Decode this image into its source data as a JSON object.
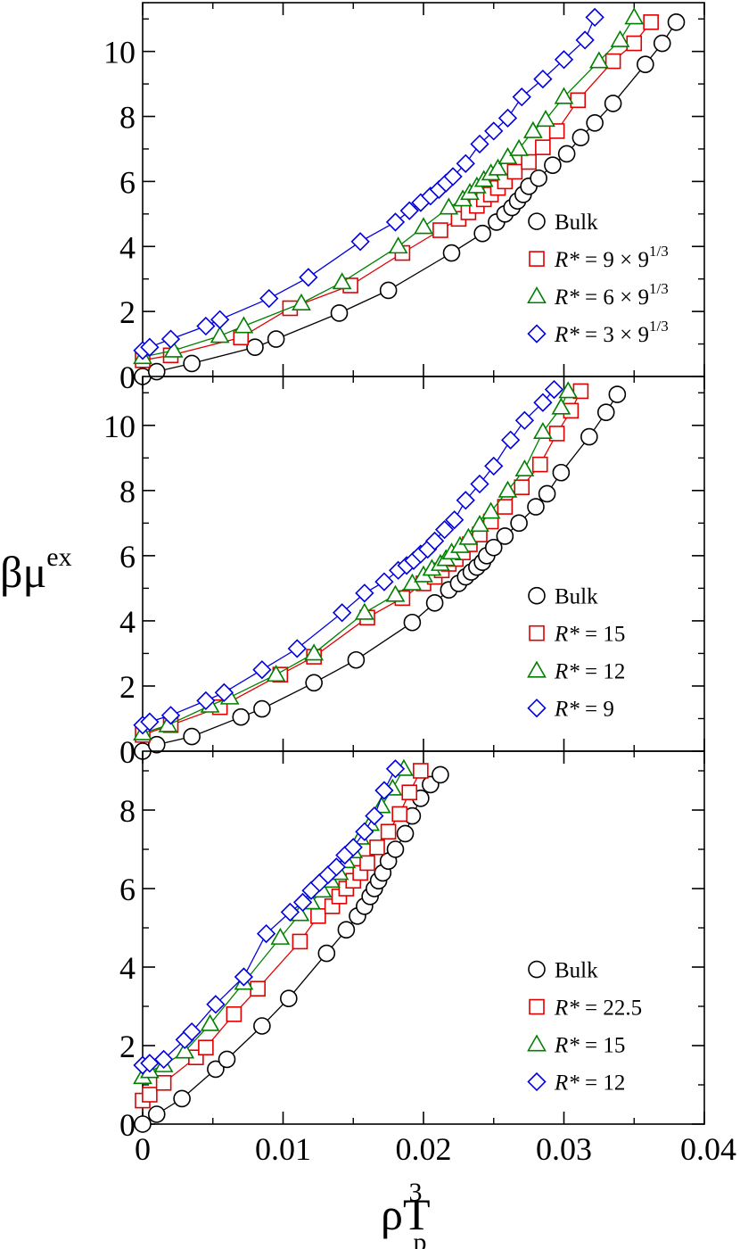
{
  "chart_data": {
    "type": "scatter",
    "xlabel": "ρT",
    "xlabel_sup": "3",
    "xlabel_sub": "p",
    "ylabel": "βμ",
    "ylabel_sup": "ex",
    "xlim": [
      0,
      0.04
    ],
    "x_ticks": [
      "0",
      "0.01",
      "0.02",
      "0.03",
      "0.04"
    ],
    "x_tick_values": [
      0,
      0.01,
      0.02,
      0.03,
      0.04
    ],
    "colors": {
      "Bulk": "#000000",
      "large": "#e00000",
      "mid": "#008000",
      "small": "#0000e0"
    },
    "panels": [
      {
        "name": "top",
        "ylim": [
          0,
          11.5
        ],
        "y_ticks": [
          "0",
          "2",
          "4",
          "6",
          "8",
          "10"
        ],
        "y_tick_values": [
          0,
          2,
          4,
          6,
          8,
          10
        ],
        "legend": [
          {
            "marker": "circle",
            "color": "#000000",
            "label": "Bulk",
            "rhs": ""
          },
          {
            "marker": "square",
            "color": "#e00000",
            "label": "R*",
            "rhs": " = 9 × 9",
            "sup": "1/3"
          },
          {
            "marker": "triangle",
            "color": "#008000",
            "label": "R*",
            "rhs": " = 6 × 9",
            "sup": "1/3"
          },
          {
            "marker": "diamond",
            "color": "#0000e0",
            "label": "R*",
            "rhs": " = 3 × 9",
            "sup": "1/3"
          }
        ],
        "series": [
          {
            "name": "Bulk",
            "marker": "circle",
            "color": "#000000",
            "x": [
              0,
              0.001,
              0.0035,
              0.008,
              0.0095,
              0.014,
              0.0175,
              0.022,
              0.0242,
              0.0252,
              0.0258,
              0.0263,
              0.0267,
              0.0271,
              0.0275,
              0.0282,
              0.0292,
              0.0302,
              0.0312,
              0.0322,
              0.0335,
              0.0358,
              0.037,
              0.038
            ],
            "y": [
              0,
              0.15,
              0.4,
              0.9,
              1.15,
              1.95,
              2.65,
              3.8,
              4.4,
              4.75,
              5.0,
              5.2,
              5.4,
              5.6,
              5.85,
              6.1,
              6.5,
              6.85,
              7.35,
              7.8,
              8.4,
              9.6,
              10.25,
              10.9
            ]
          },
          {
            "name": "R* = 9 × 9^1/3",
            "marker": "square",
            "color": "#e00000",
            "x": [
              0,
              0.002,
              0.007,
              0.0105,
              0.0148,
              0.0185,
              0.0212,
              0.0225,
              0.0232,
              0.0238,
              0.0243,
              0.0248,
              0.0253,
              0.0258,
              0.0265,
              0.0275,
              0.0285,
              0.0295,
              0.031,
              0.0335,
              0.035,
              0.0362
            ],
            "y": [
              0.5,
              0.65,
              1.2,
              2.1,
              2.8,
              3.8,
              4.5,
              4.85,
              5.05,
              5.25,
              5.45,
              5.6,
              5.8,
              6.0,
              6.3,
              6.6,
              7.05,
              7.55,
              8.5,
              9.7,
              10.25,
              10.9
            ]
          },
          {
            "name": "R* = 6 × 9^1/3",
            "marker": "triangle",
            "color": "#008000",
            "x": [
              0,
              0.0022,
              0.0055,
              0.0072,
              0.0113,
              0.0142,
              0.0182,
              0.02,
              0.0218,
              0.0228,
              0.0233,
              0.0238,
              0.0243,
              0.0248,
              0.0253,
              0.026,
              0.0268,
              0.0278,
              0.0287,
              0.03,
              0.0325,
              0.034,
              0.035
            ],
            "y": [
              0.6,
              0.8,
              1.25,
              1.55,
              2.25,
              2.9,
              4.0,
              4.6,
              5.2,
              5.45,
              5.65,
              5.85,
              6.05,
              6.25,
              6.4,
              6.75,
              7.0,
              7.55,
              7.9,
              8.6,
              9.7,
              10.35,
              11.05
            ]
          },
          {
            "name": "R* = 3 × 9^1/3",
            "marker": "diamond",
            "color": "#0000e0",
            "x": [
              0,
              0.0005,
              0.002,
              0.0045,
              0.0055,
              0.009,
              0.0118,
              0.0155,
              0.018,
              0.019,
              0.0198,
              0.0205,
              0.0211,
              0.0216,
              0.0221,
              0.023,
              0.024,
              0.025,
              0.026,
              0.027,
              0.0285,
              0.03,
              0.0315,
              0.0322
            ],
            "y": [
              0.8,
              0.9,
              1.15,
              1.55,
              1.75,
              2.4,
              3.05,
              4.15,
              4.75,
              5.1,
              5.35,
              5.55,
              5.75,
              5.95,
              6.15,
              6.55,
              7.15,
              7.55,
              7.95,
              8.6,
              9.15,
              9.75,
              10.35,
              11.05
            ]
          }
        ]
      },
      {
        "name": "middle",
        "ylim": [
          0,
          11.5
        ],
        "y_ticks": [
          "0",
          "2",
          "4",
          "6",
          "8",
          "10"
        ],
        "y_tick_values": [
          0,
          2,
          4,
          6,
          8,
          10
        ],
        "legend": [
          {
            "marker": "circle",
            "color": "#000000",
            "label": "Bulk",
            "rhs": ""
          },
          {
            "marker": "square",
            "color": "#e00000",
            "label": "R*",
            "rhs": " = 15"
          },
          {
            "marker": "triangle",
            "color": "#008000",
            "label": "R*",
            "rhs": " = 12"
          },
          {
            "marker": "diamond",
            "color": "#0000e0",
            "label": "R*",
            "rhs": " = 9"
          }
        ],
        "series": [
          {
            "name": "Bulk",
            "marker": "circle",
            "color": "#000000",
            "x": [
              0,
              0.001,
              0.0035,
              0.007,
              0.0085,
              0.0122,
              0.0152,
              0.0192,
              0.0208,
              0.0218,
              0.0225,
              0.023,
              0.0234,
              0.0238,
              0.0242,
              0.0245,
              0.025,
              0.0258,
              0.0268,
              0.028,
              0.0288,
              0.0298,
              0.0318,
              0.033,
              0.0338
            ],
            "y": [
              0,
              0.2,
              0.45,
              1.05,
              1.3,
              2.1,
              2.8,
              3.95,
              4.55,
              4.95,
              5.15,
              5.35,
              5.5,
              5.65,
              5.8,
              6.0,
              6.25,
              6.6,
              7.0,
              7.5,
              7.9,
              8.55,
              9.65,
              10.4,
              10.95
            ]
          },
          {
            "name": "R* = 15",
            "marker": "square",
            "color": "#e00000",
            "x": [
              0,
              0.002,
              0.0055,
              0.0098,
              0.0122,
              0.016,
              0.0185,
              0.02,
              0.0208,
              0.0213,
              0.0218,
              0.0223,
              0.0228,
              0.0233,
              0.024,
              0.0248,
              0.0258,
              0.027,
              0.0283,
              0.0295,
              0.0305,
              0.0312
            ],
            "y": [
              0.5,
              0.8,
              1.35,
              2.35,
              2.9,
              4.1,
              4.7,
              5.15,
              5.35,
              5.55,
              5.75,
              5.9,
              6.1,
              6.35,
              6.65,
              7.05,
              7.5,
              8.1,
              8.8,
              9.75,
              10.45,
              11.05
            ]
          },
          {
            "name": "R* = 12",
            "marker": "triangle",
            "color": "#008000",
            "x": [
              0,
              0.0018,
              0.0048,
              0.0062,
              0.0095,
              0.0122,
              0.0158,
              0.018,
              0.0192,
              0.02,
              0.0206,
              0.0212,
              0.0216,
              0.022,
              0.0226,
              0.0232,
              0.024,
              0.0248,
              0.026,
              0.0272,
              0.0285,
              0.0298,
              0.0303
            ],
            "y": [
              0.55,
              0.8,
              1.4,
              1.65,
              2.35,
              3.0,
              4.25,
              4.8,
              5.15,
              5.4,
              5.6,
              5.75,
              5.9,
              6.1,
              6.3,
              6.55,
              6.95,
              7.35,
              8.0,
              8.65,
              9.8,
              10.55,
              11.05
            ]
          },
          {
            "name": "R* = 9",
            "marker": "diamond",
            "color": "#0000e0",
            "x": [
              0,
              0.0005,
              0.002,
              0.0045,
              0.0058,
              0.0085,
              0.011,
              0.0142,
              0.0158,
              0.0172,
              0.0182,
              0.0188,
              0.0193,
              0.0198,
              0.0203,
              0.0208,
              0.0215,
              0.0222,
              0.023,
              0.024,
              0.025,
              0.0262,
              0.0272,
              0.0285,
              0.0293
            ],
            "y": [
              0.8,
              0.9,
              1.1,
              1.55,
              1.8,
              2.5,
              3.15,
              4.25,
              4.85,
              5.2,
              5.55,
              5.7,
              5.85,
              6.05,
              6.2,
              6.45,
              6.8,
              7.1,
              7.7,
              8.2,
              8.75,
              9.55,
              10.15,
              10.7,
              11.1
            ]
          }
        ]
      },
      {
        "name": "bottom",
        "ylim": [
          0,
          9.5
        ],
        "y_ticks": [
          "0",
          "2",
          "4",
          "6",
          "8"
        ],
        "y_tick_values": [
          0,
          2,
          4,
          6,
          8
        ],
        "legend": [
          {
            "marker": "circle",
            "color": "#000000",
            "label": "Bulk",
            "rhs": ""
          },
          {
            "marker": "square",
            "color": "#e00000",
            "label": "R*",
            "rhs": " = 22.5"
          },
          {
            "marker": "triangle",
            "color": "#008000",
            "label": "R*",
            "rhs": " = 15"
          },
          {
            "marker": "diamond",
            "color": "#0000e0",
            "label": "R*",
            "rhs": " = 12"
          }
        ],
        "series": [
          {
            "name": "Bulk",
            "marker": "circle",
            "color": "#000000",
            "x": [
              0,
              0.001,
              0.0028,
              0.0052,
              0.006,
              0.0085,
              0.0104,
              0.0131,
              0.0145,
              0.0153,
              0.0158,
              0.0162,
              0.0165,
              0.0168,
              0.0171,
              0.0175,
              0.018,
              0.0187,
              0.0192,
              0.0198,
              0.0205,
              0.0212
            ],
            "y": [
              0,
              0.25,
              0.65,
              1.4,
              1.65,
              2.5,
              3.2,
              4.35,
              4.95,
              5.3,
              5.55,
              5.8,
              6.0,
              6.2,
              6.4,
              6.7,
              7.0,
              7.4,
              7.85,
              8.3,
              8.65,
              8.9
            ]
          },
          {
            "name": "R* = 22.5",
            "marker": "square",
            "color": "#e00000",
            "x": [
              0,
              0.0005,
              0.0015,
              0.0038,
              0.0045,
              0.0065,
              0.0082,
              0.0112,
              0.0125,
              0.0135,
              0.014,
              0.0145,
              0.015,
              0.0155,
              0.016,
              0.0167,
              0.0175,
              0.0183,
              0.019,
              0.0198
            ],
            "y": [
              0.6,
              0.75,
              1.05,
              1.7,
              1.95,
              2.8,
              3.45,
              4.65,
              5.3,
              5.55,
              5.8,
              6.0,
              6.2,
              6.4,
              6.65,
              7.05,
              7.45,
              7.9,
              8.45,
              9.0
            ]
          },
          {
            "name": "R* = 15",
            "marker": "triangle",
            "color": "#008000",
            "x": [
              0,
              0.0005,
              0.0015,
              0.003,
              0.0048,
              0.0072,
              0.0098,
              0.0112,
              0.012,
              0.0128,
              0.0134,
              0.014,
              0.0145,
              0.015,
              0.0155,
              0.0162,
              0.017,
              0.0178,
              0.0186
            ],
            "y": [
              1.2,
              1.35,
              1.5,
              1.85,
              2.55,
              3.6,
              4.75,
              5.35,
              5.65,
              5.95,
              6.2,
              6.4,
              6.7,
              6.95,
              7.3,
              7.65,
              8.1,
              8.55,
              9.05
            ]
          },
          {
            "name": "R* = 12",
            "marker": "diamond",
            "color": "#0000e0",
            "x": [
              0,
              0.0005,
              0.0015,
              0.003,
              0.0035,
              0.0052,
              0.0072,
              0.0088,
              0.0105,
              0.0114,
              0.012,
              0.0126,
              0.0132,
              0.0138,
              0.0144,
              0.015,
              0.0158,
              0.0165,
              0.0172,
              0.018
            ],
            "y": [
              1.5,
              1.55,
              1.65,
              2.15,
              2.35,
              3.05,
              3.75,
              4.85,
              5.4,
              5.65,
              5.95,
              6.15,
              6.35,
              6.55,
              6.85,
              7.05,
              7.45,
              7.85,
              8.5,
              9.05
            ]
          }
        ]
      }
    ]
  }
}
